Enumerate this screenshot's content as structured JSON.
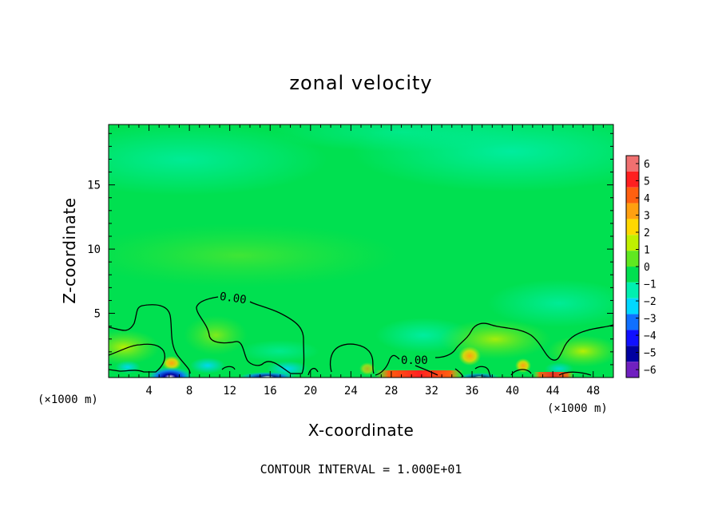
{
  "chart_data": {
    "type": "heatmap",
    "title": "zonal velocity",
    "xlabel": "X-coordinate",
    "ylabel": "Z-coordinate",
    "x_unit_left": "(×1000 m)",
    "x_unit_right": "(×1000 m)",
    "xlim": [
      0,
      50
    ],
    "ylim": [
      0,
      19.7
    ],
    "x_ticks": [
      4,
      8,
      12,
      16,
      20,
      24,
      28,
      32,
      36,
      40,
      44,
      48
    ],
    "y_ticks": [
      5,
      10,
      15
    ],
    "colorbar": {
      "levels": [
        6,
        5,
        4,
        3,
        2,
        1,
        0,
        -1,
        -2,
        -3,
        -4,
        -5,
        -6
      ],
      "colors": [
        "#f07070",
        "#ff2020",
        "#ff6010",
        "#ffa010",
        "#ffd800",
        "#c0f000",
        "#60e820",
        "#00e050",
        "#00f0b0",
        "#00d8ff",
        "#1070ff",
        "#1010ff",
        "#0000a0",
        "#7020c0"
      ]
    },
    "field": {
      "background": "#00e050",
      "zero_contour_label_1": "0.00",
      "zero_contour_label_2": "0.00",
      "features": [
        {
          "kind": "weak-negative",
          "x": 30,
          "z": 17,
          "color": "#00f0b0"
        },
        {
          "kind": "weak-negative",
          "x": 46,
          "z": 4.5,
          "color": "#00f0b0"
        },
        {
          "kind": "weak-negative",
          "x": 31,
          "z": 3.0,
          "color": "#00f0b0"
        },
        {
          "kind": "positive",
          "x": 3,
          "z": 2.2,
          "color": "#c0f000"
        },
        {
          "kind": "positive",
          "x": 35,
          "z": 1.6,
          "color": "#ffa010"
        },
        {
          "kind": "strong-negative",
          "x": 6,
          "z": 0.3,
          "color": "#0000a0"
        },
        {
          "kind": "strong-positive",
          "x": 30,
          "z": 0.3,
          "color": "#ff2020"
        }
      ]
    },
    "footnote": "CONTOUR INTERVAL = 1.000E+01"
  }
}
